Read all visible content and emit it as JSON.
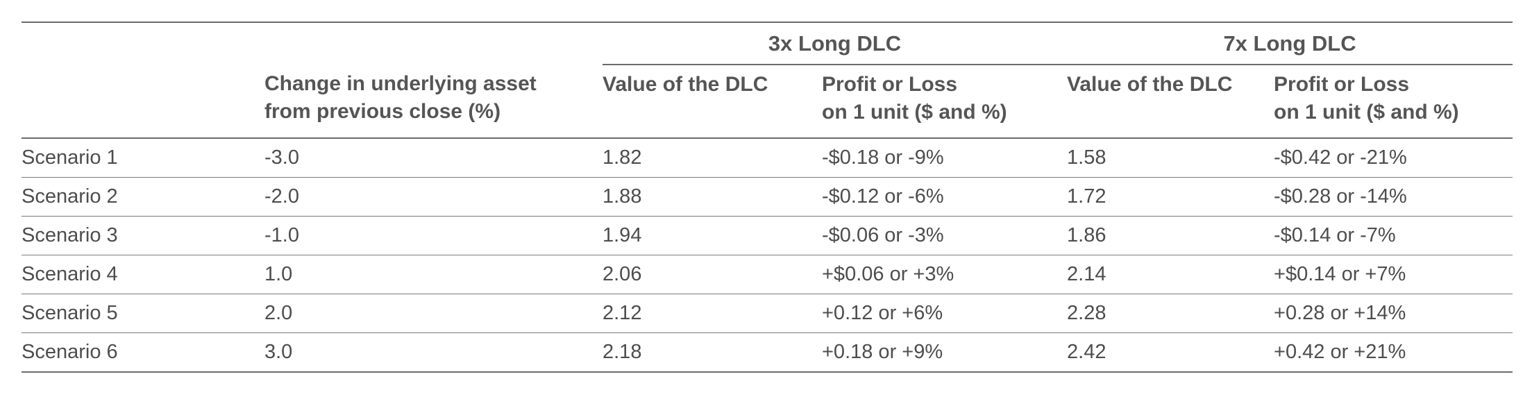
{
  "groups": [
    {
      "label": "",
      "span": 2
    },
    {
      "label": "3x Long DLC",
      "span": 2
    },
    {
      "label": "7x Long DLC",
      "span": 2
    }
  ],
  "headers": [
    [],
    [
      "Change in underlying asset",
      "from previous close (%)"
    ],
    [
      "Value of the DLC"
    ],
    [
      "Profit or Loss",
      "on 1 unit ($ and %)"
    ],
    [
      "Value of the DLC"
    ],
    [
      "Profit or Loss",
      "on 1 unit ($ and %)"
    ]
  ],
  "rows": [
    [
      "Scenario 1",
      "-3.0",
      "1.82",
      "-$0.18 or -9%",
      "1.58",
      "-$0.42 or -21%"
    ],
    [
      "Scenario 2",
      "-2.0",
      "1.88",
      "-$0.12 or -6%",
      "1.72",
      "-$0.28 or -14%"
    ],
    [
      "Scenario 3",
      "-1.0",
      "1.94",
      "-$0.06 or -3%",
      "1.86",
      "-$0.14 or -7%"
    ],
    [
      "Scenario 4",
      "1.0",
      "2.06",
      "+$0.06 or +3%",
      "2.14",
      "+$0.14 or +7%"
    ],
    [
      "Scenario 5",
      "2.0",
      "2.12",
      "+0.12 or +6%",
      "2.28",
      "+0.28 or +14%"
    ],
    [
      "Scenario 6",
      "3.0",
      "2.18",
      "+0.18 or +9%",
      "2.42",
      "+0.42 or +21%"
    ]
  ]
}
